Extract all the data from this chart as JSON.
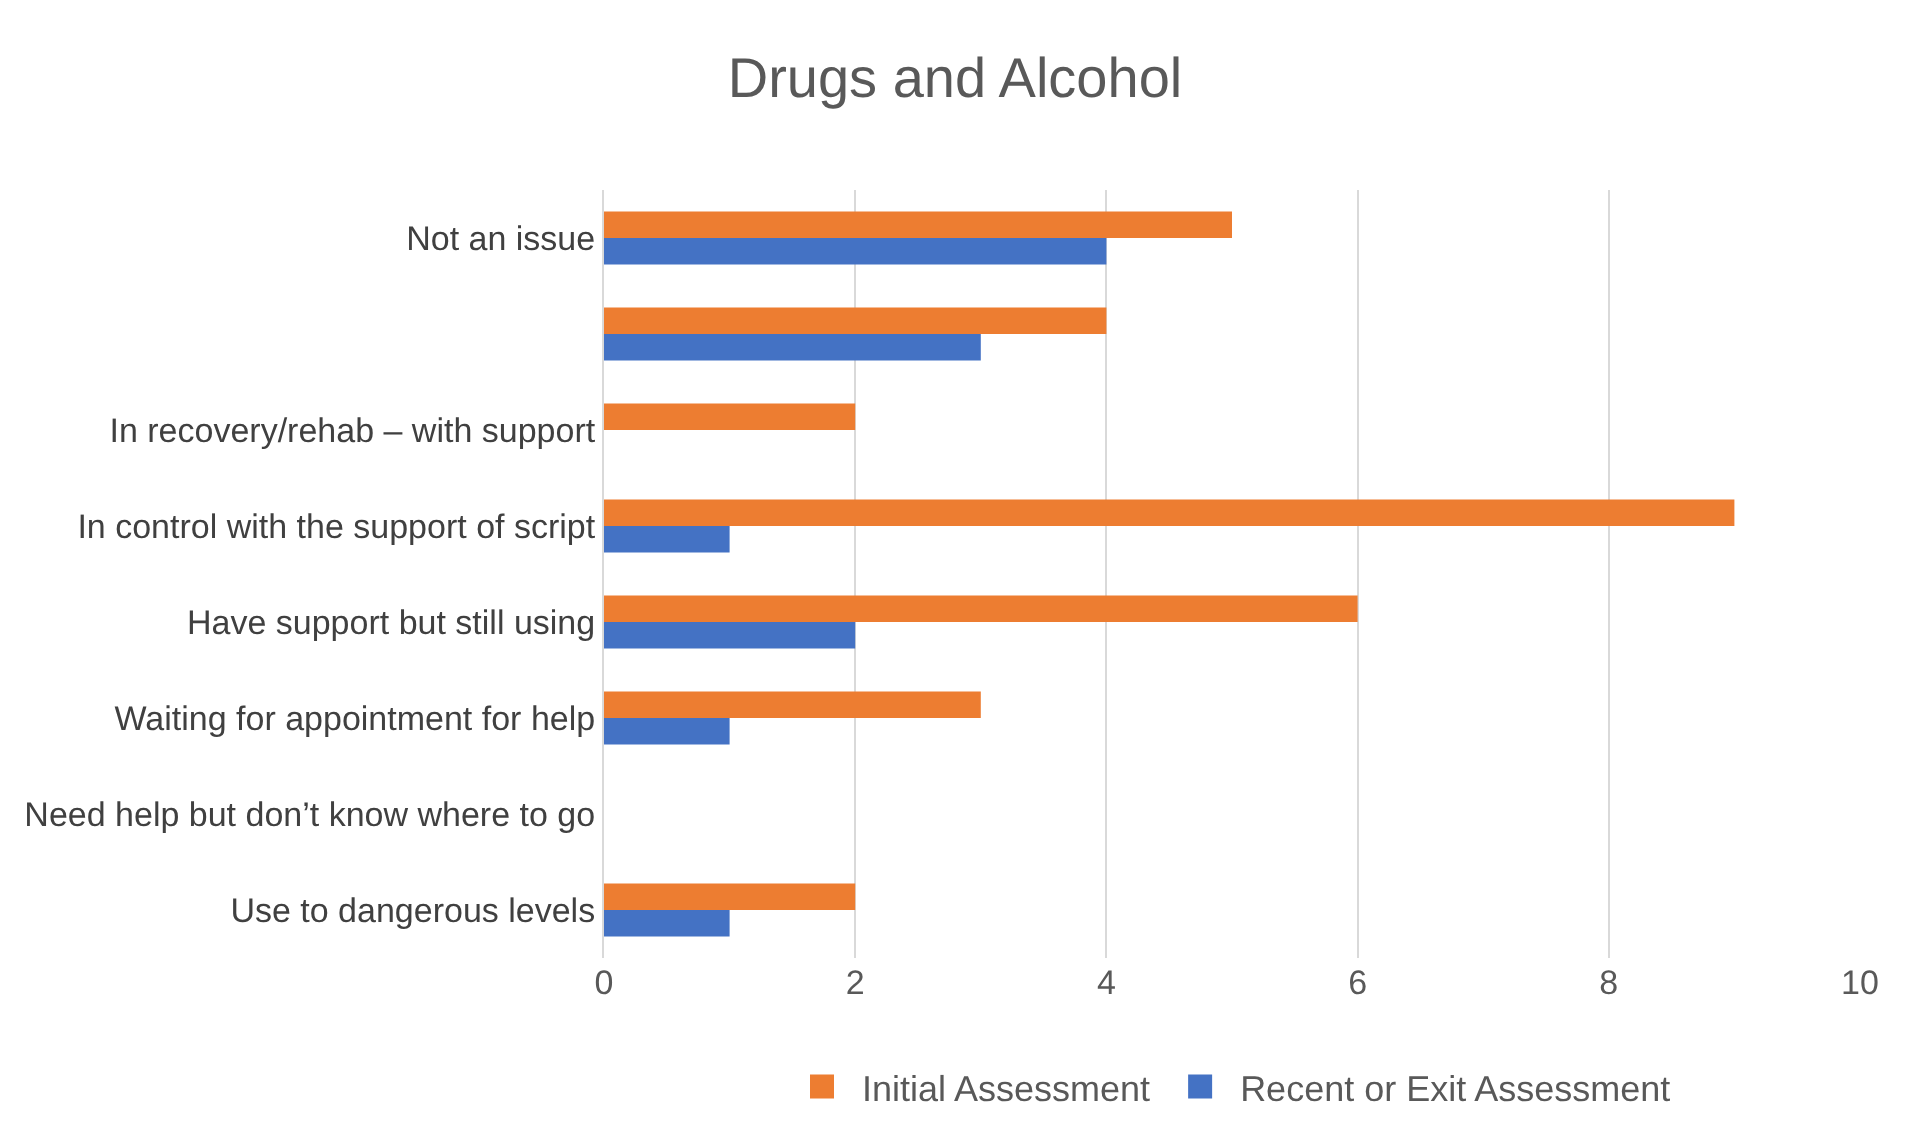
{
  "chart_data": {
    "type": "bar",
    "orientation": "horizontal",
    "title": "Drugs and Alcohol",
    "categories": [
      "Not an issue",
      null,
      "In recovery/rehab – with support",
      "In control with the support of script",
      "Have support but still using",
      "Waiting for appointment for help",
      "Need help but don’t know where to go",
      "Use to dangerous levels"
    ],
    "series": [
      {
        "name": "Initial Assessment",
        "color": "#ed7d31",
        "values": [
          5,
          4,
          2,
          9,
          6,
          3,
          0,
          2
        ]
      },
      {
        "name": "Recent or Exit Assessment",
        "color": "#4472c4",
        "values": [
          4,
          3,
          0,
          1,
          2,
          1,
          0,
          1
        ]
      }
    ],
    "xlim": [
      0,
      10
    ],
    "xticks": [
      0,
      2,
      4,
      6,
      8,
      10
    ],
    "grid": "x",
    "legend": "bottom"
  }
}
